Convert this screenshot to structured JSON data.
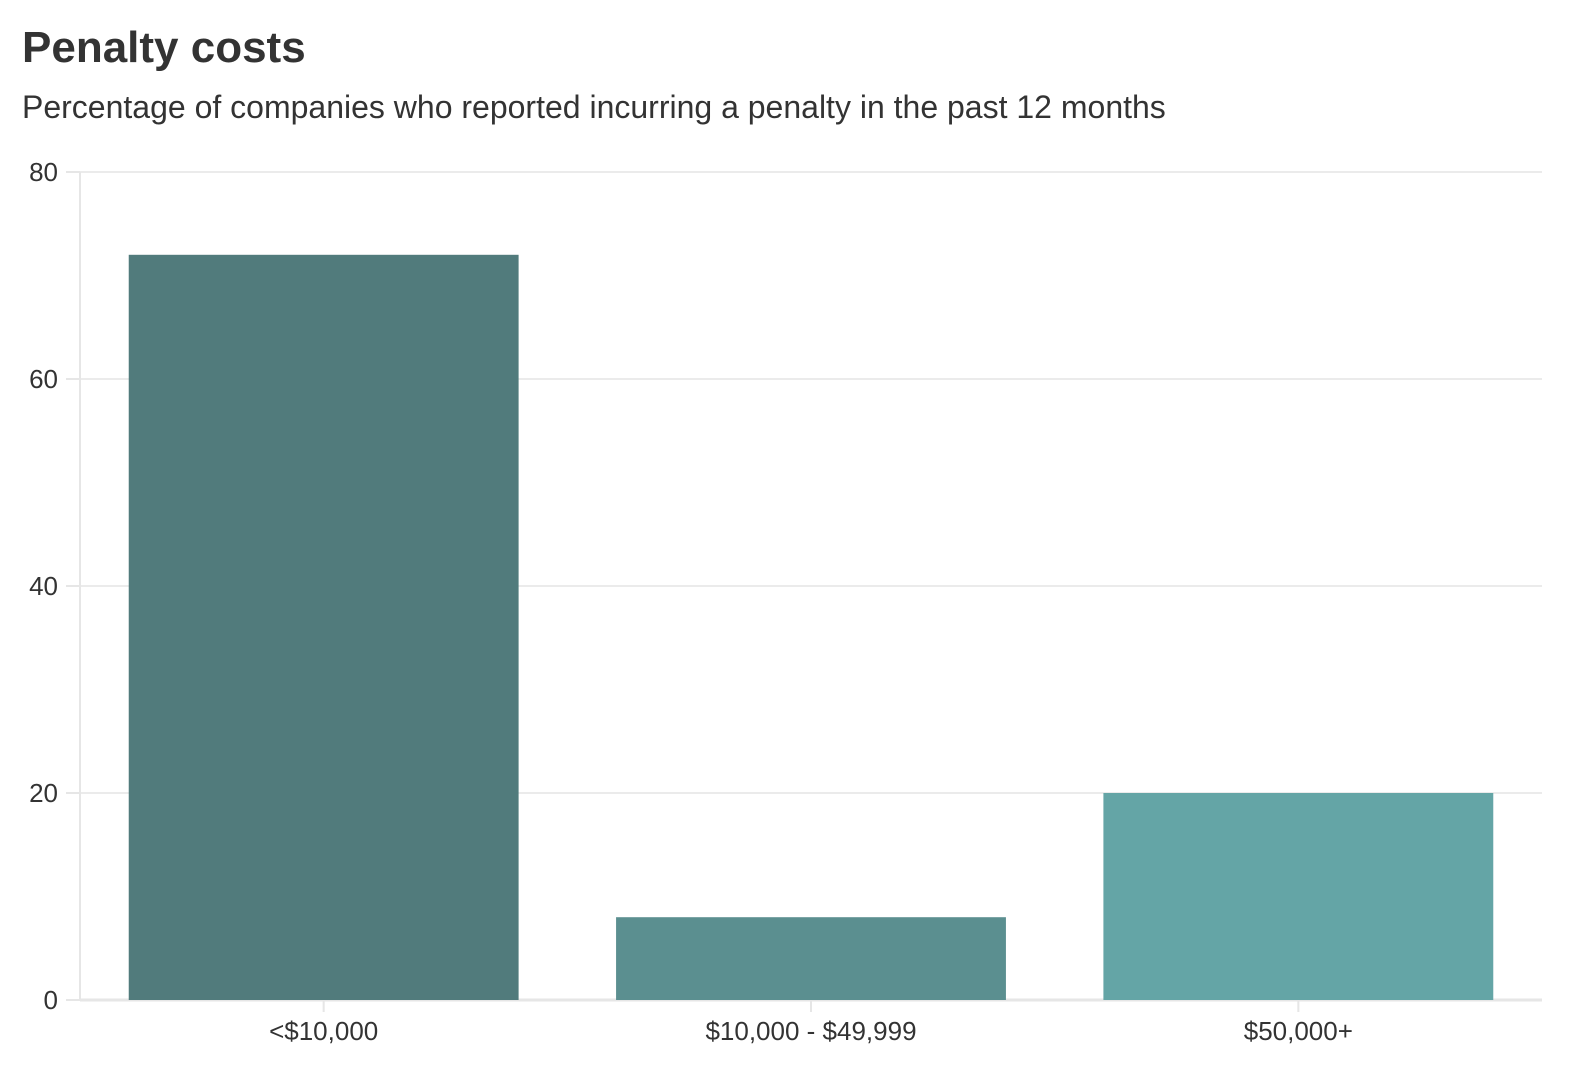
{
  "chart_data": {
    "type": "bar",
    "title": "Penalty costs",
    "subtitle": "Percentage of companies who reported incurring a penalty in the past 12 months",
    "xlabel": "",
    "ylabel": "",
    "categories": [
      "<$10,000",
      "$10,000 - $49,999",
      "$50,000+"
    ],
    "values": [
      72,
      8,
      20
    ],
    "colors": [
      "#517b7c",
      "#5b8f90",
      "#64a5a6"
    ],
    "ylim": [
      0,
      80
    ],
    "yticks": [
      0,
      20,
      40,
      60,
      80
    ],
    "grid": true,
    "legend": "none"
  },
  "colors": {
    "grid": "#ebebeb",
    "axis": "#e6e6e6",
    "text": "#333333"
  }
}
